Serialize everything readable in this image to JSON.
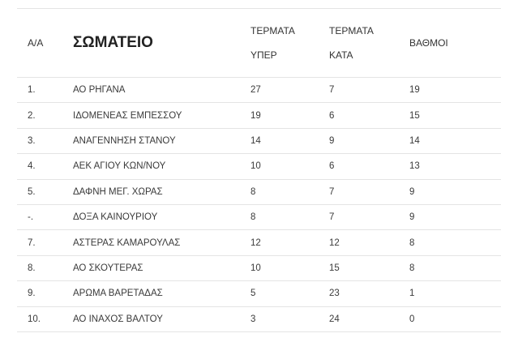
{
  "table": {
    "headers": {
      "position": "Α/Α",
      "team": "ΣΩΜΑΤΕΙΟ",
      "goals_for_line1": "ΤΕΡΜΑΤΑ",
      "goals_for_line2": "ΥΠΕΡ",
      "goals_against_line1": "ΤΕΡΜΑΤΑ",
      "goals_against_line2": "ΚΑΤΑ",
      "points": "ΒΑΘΜΟΙ"
    },
    "rows": [
      {
        "pos": "1.",
        "team": "ΑΟ ΡΗΓΑΝΑ",
        "for": "27",
        "against": "7",
        "points": "19"
      },
      {
        "pos": "2.",
        "team": "ΙΔΟΜΕΝΕΑΣ ΕΜΠΕΣΣΟΥ",
        "for": "19",
        "against": "6",
        "points": "15"
      },
      {
        "pos": "3.",
        "team": "ΑΝΑΓΕΝΝΗΣΗ ΣΤΑΝΟΥ",
        "for": "14",
        "against": "9",
        "points": "14"
      },
      {
        "pos": "4.",
        "team": "ΑΕΚ ΑΓΙΟΥ ΚΩΝ/ΝΟΥ",
        "for": "10",
        "against": "6",
        "points": "13"
      },
      {
        "pos": "5.",
        "team": "ΔΑΦΝΗ ΜΕΓ. ΧΩΡΑΣ",
        "for": "8",
        "against": "7",
        "points": "9"
      },
      {
        "pos": "-.",
        "team": "ΔΟΞΑ ΚΑΙΝΟΥΡΙΟΥ",
        "for": "8",
        "against": "7",
        "points": "9"
      },
      {
        "pos": "7.",
        "team": "ΑΣΤΕΡΑΣ ΚΑΜΑΡΟΥΛΑΣ",
        "for": "12",
        "against": "12",
        "points": "8"
      },
      {
        "pos": "8.",
        "team": "ΑΟ ΣΚΟΥΤΕΡΑΣ",
        "for": "10",
        "against": "15",
        "points": "8"
      },
      {
        "pos": "9.",
        "team": "ΑΡΩΜΑ ΒΑΡΕΤΑΔΑΣ",
        "for": "5",
        "against": "23",
        "points": "1"
      },
      {
        "pos": "10.",
        "team": "ΑΟ ΙΝΑΧΟΣ ΒΑΛΤΟΥ",
        "for": "3",
        "against": "24",
        "points": "0"
      }
    ]
  }
}
